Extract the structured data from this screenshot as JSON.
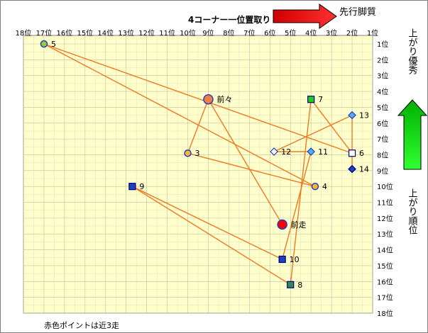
{
  "chart_data": {
    "type": "scatter",
    "title": "4コーナー一位置取り",
    "x_axis": {
      "label": "",
      "reversed": true,
      "range": [
        1,
        18
      ],
      "tick_labels": [
        "18位",
        "17位",
        "16位",
        "15位",
        "14位",
        "13位",
        "12位",
        "11位",
        "10位",
        "9位",
        "8位",
        "7位",
        "6位",
        "5位",
        "4位",
        "3位",
        "2位",
        "1位"
      ]
    },
    "y_axis": {
      "label": "",
      "reversed": true,
      "range": [
        1,
        18
      ],
      "tick_labels": [
        "1位",
        "2位",
        "3位",
        "4位",
        "5位",
        "6位",
        "7位",
        "8位",
        "9位",
        "10位",
        "11位",
        "12位",
        "13位",
        "14位",
        "15位",
        "16位",
        "17位",
        "18位"
      ]
    },
    "top_arrow_label": "先行脚質",
    "side_top_label": "上がり優秀",
    "side_bottom_label": "上がり順位",
    "footnote": "赤色ポイントは近3走",
    "grid": true,
    "points": [
      {
        "label": "5",
        "x": 17.0,
        "y": 1.0,
        "shape": "circle",
        "fill": "#9acd32",
        "stroke": "#1f3fbf"
      },
      {
        "label": "前々",
        "x": 9.0,
        "y": 4.5,
        "shape": "circle",
        "fill": "#f08040",
        "stroke": "#1f3fbf"
      },
      {
        "label": "3",
        "x": 10.0,
        "y": 7.9,
        "shape": "circle",
        "fill": "#f7b731",
        "stroke": "#1f3fbf"
      },
      {
        "label": "4",
        "x": 3.8,
        "y": 10.0,
        "shape": "circle",
        "fill": "#f7b731",
        "stroke": "#1f3fbf"
      },
      {
        "label": "前走",
        "x": 5.4,
        "y": 12.4,
        "shape": "circle",
        "fill": "#ff0000",
        "stroke": "#1f3fbf"
      },
      {
        "label": "7",
        "x": 4.0,
        "y": 4.5,
        "shape": "square",
        "fill": "#22cc22",
        "stroke": "#000080"
      },
      {
        "label": "13",
        "x": 2.0,
        "y": 5.5,
        "shape": "diamond",
        "fill": "#55aaff",
        "stroke": "#1f3fbf"
      },
      {
        "label": "12",
        "x": 5.8,
        "y": 7.8,
        "shape": "diamond",
        "fill": "#ffffff",
        "stroke": "#1f3fbf"
      },
      {
        "label": "11",
        "x": 4.0,
        "y": 7.8,
        "shape": "diamond",
        "fill": "#55aaff",
        "stroke": "#1f3fbf"
      },
      {
        "label": "6",
        "x": 2.0,
        "y": 7.9,
        "shape": "square",
        "fill": "#ffffff",
        "stroke": "#000080"
      },
      {
        "label": "14",
        "x": 2.0,
        "y": 8.9,
        "shape": "diamond",
        "fill": "#1f3fbf",
        "stroke": "#000080"
      },
      {
        "label": "9",
        "x": 12.7,
        "y": 10.0,
        "shape": "square",
        "fill": "#1f3fbf",
        "stroke": "#000080"
      },
      {
        "label": "10",
        "x": 5.4,
        "y": 14.6,
        "shape": "square",
        "fill": "#1f3fbf",
        "stroke": "#000080"
      },
      {
        "label": "8",
        "x": 5.0,
        "y": 16.2,
        "shape": "square",
        "fill": "#2e8b57",
        "stroke": "#000080"
      }
    ],
    "path_order": [
      "前走",
      "前々",
      "3",
      "4",
      "5",
      "6",
      "7",
      "8",
      "9",
      "10",
      "11",
      "12",
      "13",
      "14"
    ],
    "line_color": "#f07820"
  }
}
